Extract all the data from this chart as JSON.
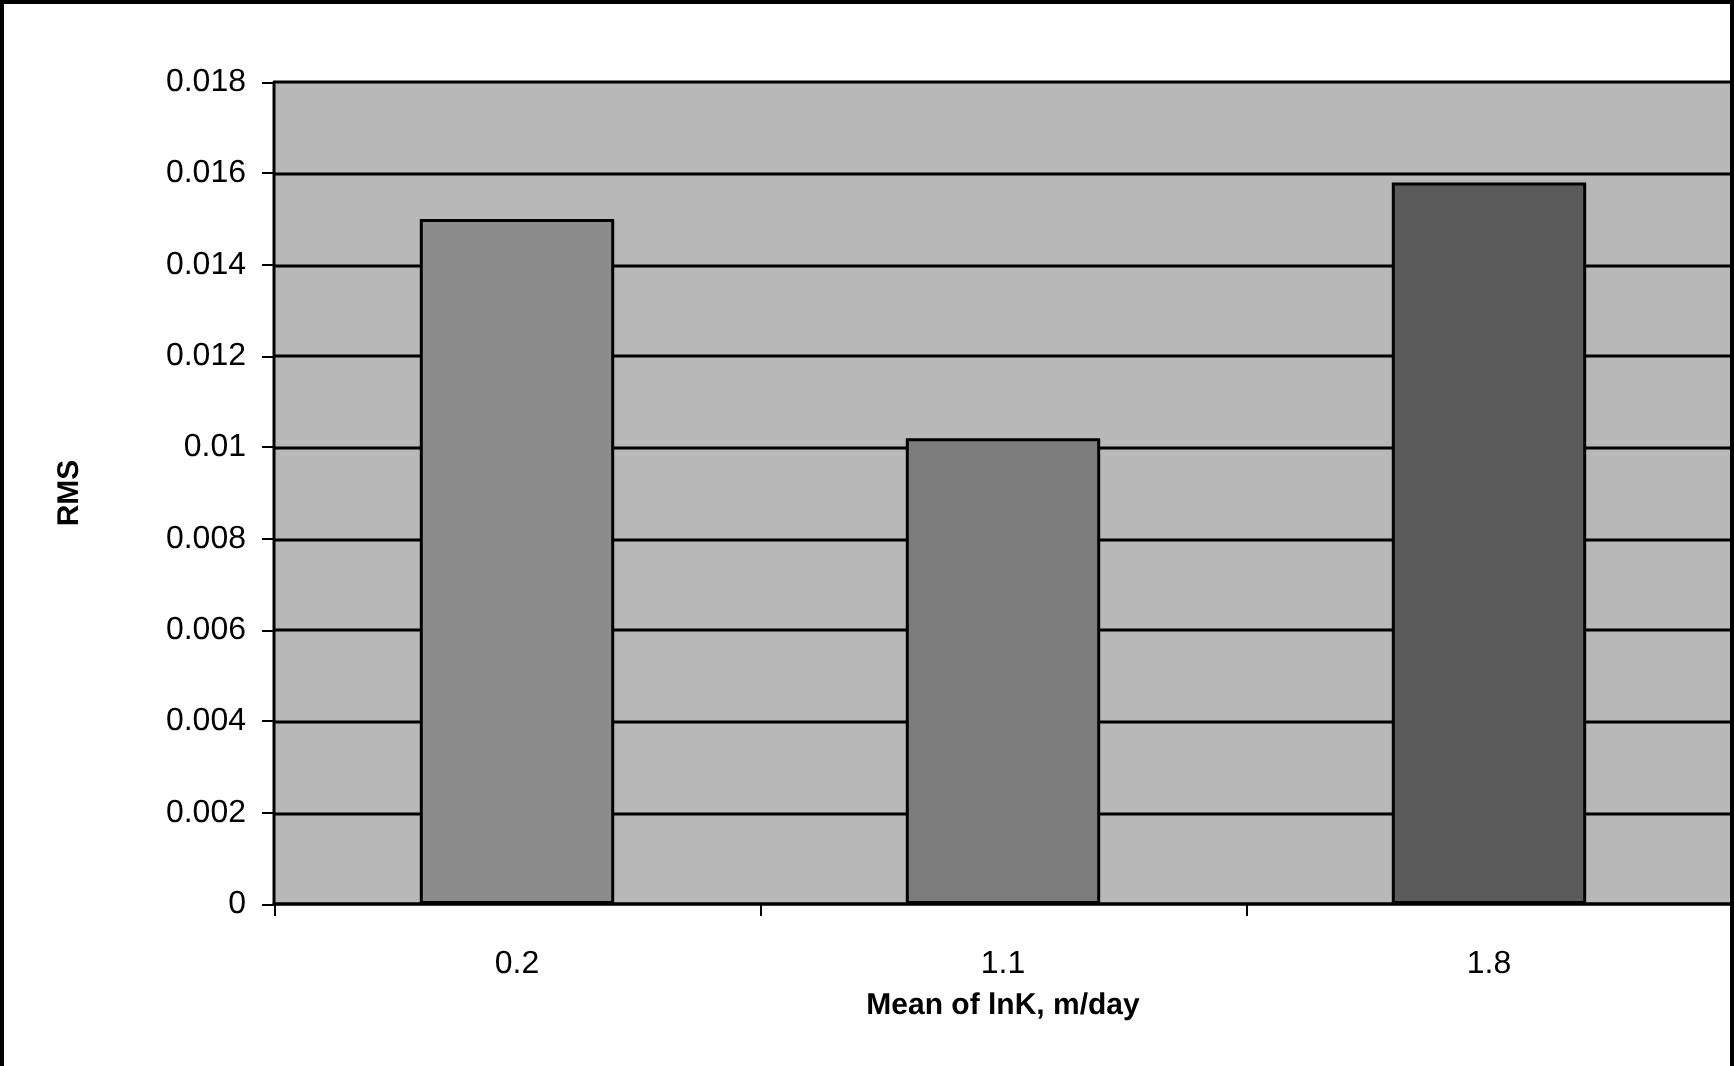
{
  "chart_data": {
    "type": "bar",
    "xlabel": "Mean of lnK, m/day",
    "ylabel": "RMS",
    "categories": [
      "0.2",
      "1.1",
      "1.8"
    ],
    "values": [
      0.015,
      0.0102,
      0.0158
    ],
    "colors": [
      "#8c8c8c",
      "#7c7c7c",
      "#5a5a5a"
    ],
    "ylim": [
      0,
      0.018
    ],
    "yticks": [
      0,
      0.002,
      0.004,
      0.006,
      0.008,
      0.01,
      0.012,
      0.014,
      0.016,
      0.018
    ],
    "grid": "y"
  }
}
